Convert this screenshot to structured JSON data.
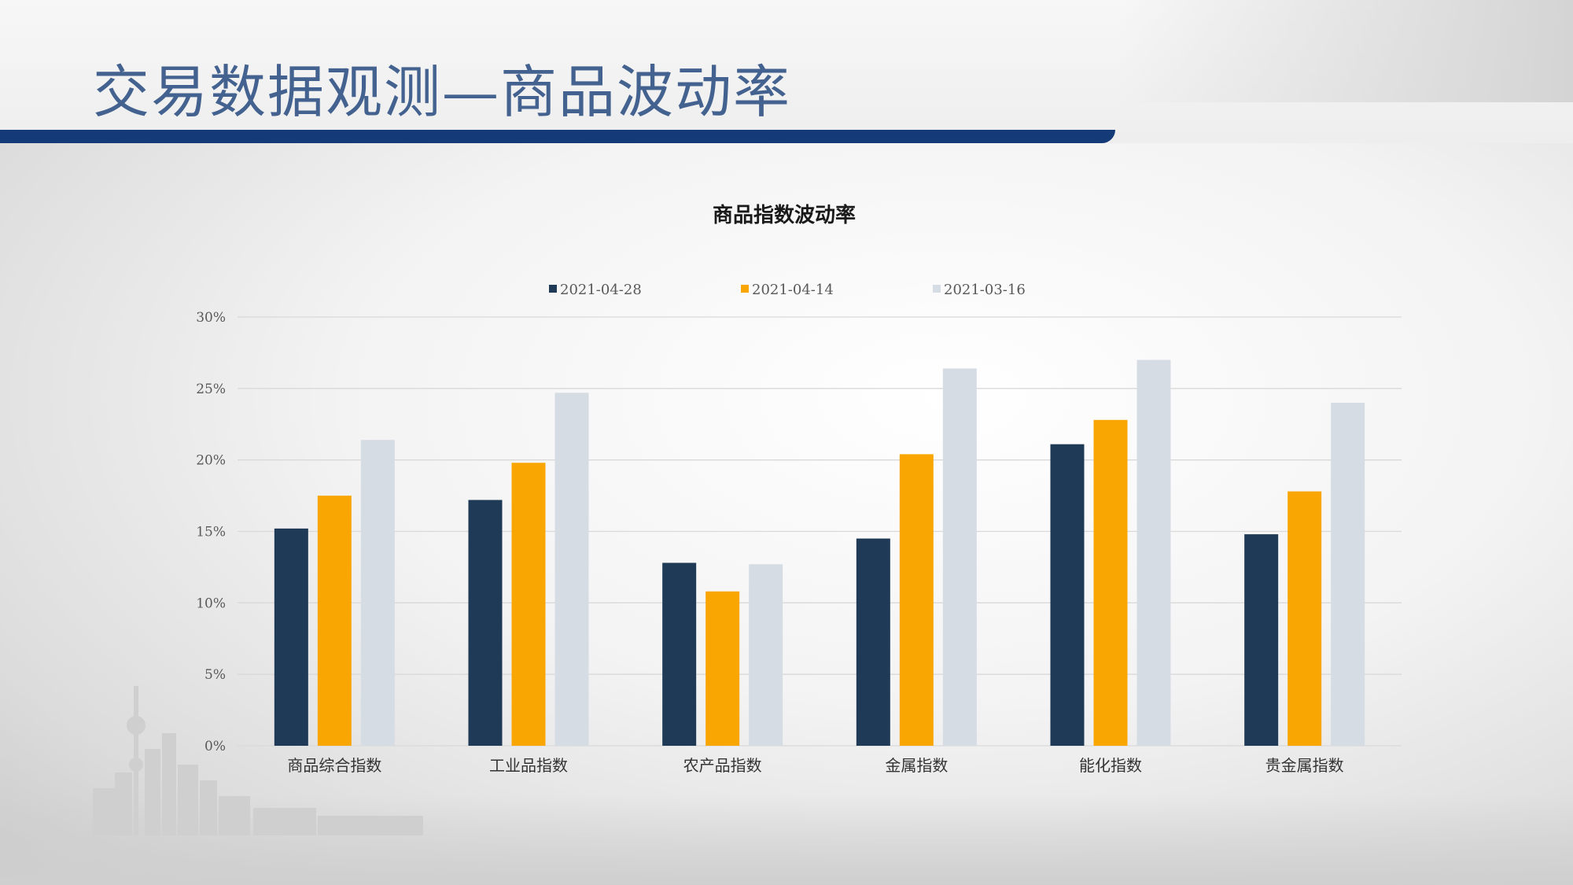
{
  "slide": {
    "title": "交易数据观测—商品波动率"
  },
  "colors": {
    "series": [
      "#1f3a56",
      "#f9a602",
      "#d6dce4"
    ],
    "title_bar": "#143a78",
    "title_text": "#44628f",
    "gridline": "#d9d9d9",
    "axis_text": "#595959"
  },
  "chart_data": {
    "type": "bar",
    "title": "商品指数波动率",
    "categories": [
      "商品综合指数",
      "工业品指数",
      "农产品指数",
      "金属指数",
      "能化指数",
      "贵金属指数"
    ],
    "series": [
      {
        "name": "2021-04-28",
        "values": [
          15.2,
          17.2,
          12.8,
          14.5,
          21.1,
          14.8
        ]
      },
      {
        "name": "2021-04-14",
        "values": [
          17.5,
          19.8,
          10.8,
          20.4,
          22.8,
          17.8
        ]
      },
      {
        "name": "2021-03-16",
        "values": [
          21.4,
          24.7,
          12.7,
          26.4,
          27.0,
          24.0
        ]
      }
    ],
    "ylim": [
      0,
      30
    ],
    "yticks": [
      "0%",
      "5%",
      "10%",
      "15%",
      "20%",
      "25%",
      "30%"
    ],
    "ytick_values": [
      0,
      5,
      10,
      15,
      20,
      25,
      30
    ],
    "grid": true,
    "legend": "top-center"
  }
}
